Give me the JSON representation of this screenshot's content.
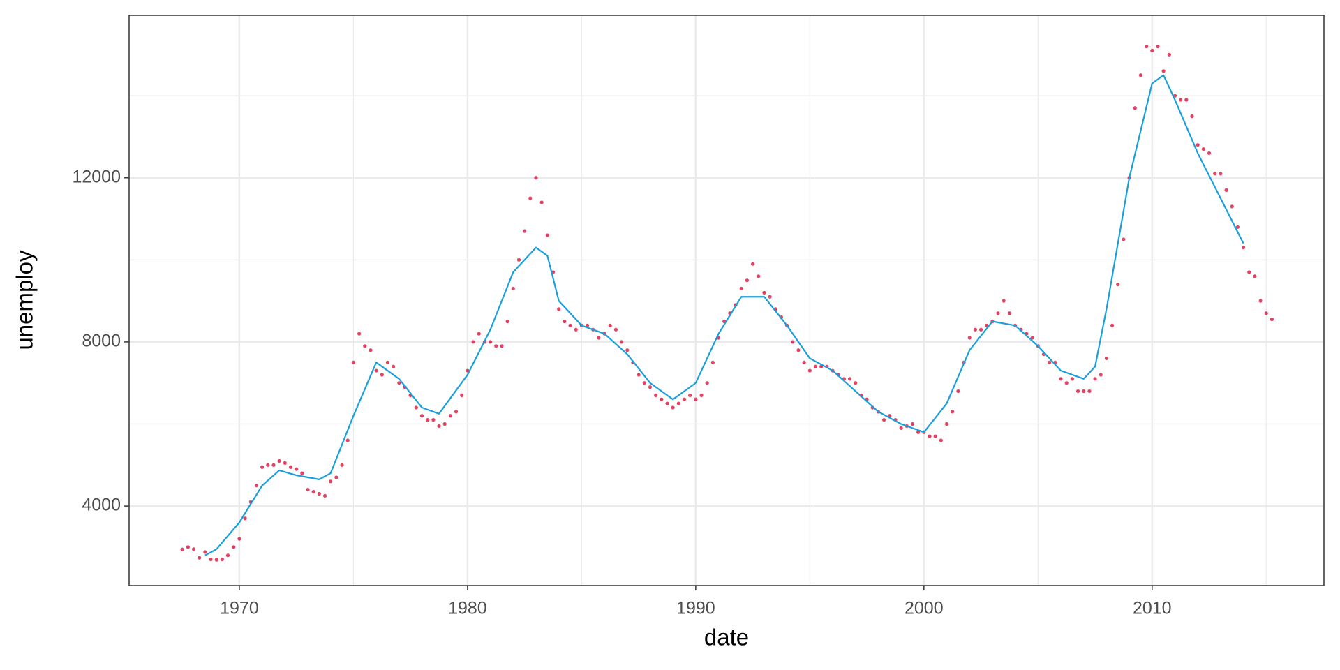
{
  "chart_data": {
    "type": "scatter",
    "x_label": "date",
    "y_label": "unemploy",
    "xlim": [
      1965.17,
      2017.53
    ],
    "ylim": [
      2063,
      15958
    ],
    "xticks": [
      1970,
      1980,
      1990,
      2000,
      2010
    ],
    "yticks": [
      4000,
      8000,
      12000
    ],
    "x_minor_ticks": [
      1975,
      1985,
      1995,
      2005,
      2015
    ],
    "y_minor_ticks": [
      6000,
      10000,
      14000
    ],
    "grid": true,
    "series": [
      {
        "type": "scatter",
        "color": "#dc143c",
        "x": [
          1967.5,
          1967.75,
          1968,
          1968.25,
          1968.5,
          1968.75,
          1969,
          1969.25,
          1969.5,
          1969.75,
          1970,
          1970.25,
          1970.5,
          1970.75,
          1971,
          1971.25,
          1971.5,
          1971.75,
          1972,
          1972.25,
          1972.5,
          1972.75,
          1973,
          1973.25,
          1973.5,
          1973.75,
          1974,
          1974.25,
          1974.5,
          1974.75,
          1975,
          1975.25,
          1975.5,
          1975.75,
          1976,
          1976.25,
          1976.5,
          1976.75,
          1977,
          1977.25,
          1977.5,
          1977.75,
          1978,
          1978.25,
          1978.5,
          1978.75,
          1979,
          1979.25,
          1979.5,
          1979.75,
          1980,
          1980.25,
          1980.5,
          1980.75,
          1981,
          1981.25,
          1981.5,
          1981.75,
          1982,
          1982.25,
          1982.5,
          1982.75,
          1983,
          1983.25,
          1983.5,
          1983.75,
          1984,
          1984.25,
          1984.5,
          1984.75,
          1985,
          1985.25,
          1985.5,
          1985.75,
          1986,
          1986.25,
          1986.5,
          1986.75,
          1987,
          1987.25,
          1987.5,
          1987.75,
          1988,
          1988.25,
          1988.5,
          1988.75,
          1989,
          1989.25,
          1989.5,
          1989.75,
          1990,
          1990.25,
          1990.5,
          1990.75,
          1991,
          1991.25,
          1991.5,
          1991.75,
          1992,
          1992.25,
          1992.5,
          1992.75,
          1993,
          1993.25,
          1993.5,
          1993.75,
          1994,
          1994.25,
          1994.5,
          1994.75,
          1995,
          1995.25,
          1995.5,
          1995.75,
          1996,
          1996.25,
          1996.5,
          1996.75,
          1997,
          1997.25,
          1997.5,
          1997.75,
          1998,
          1998.25,
          1998.5,
          1998.75,
          1999,
          1999.25,
          1999.5,
          1999.75,
          2000,
          2000.25,
          2000.5,
          2000.75,
          2001,
          2001.25,
          2001.5,
          2001.75,
          2002,
          2002.25,
          2002.5,
          2002.75,
          2003,
          2003.25,
          2003.5,
          2003.75,
          2004,
          2004.25,
          2004.5,
          2004.75,
          2005,
          2005.25,
          2005.5,
          2005.75,
          2006,
          2006.25,
          2006.5,
          2006.75,
          2007,
          2007.25,
          2007.5,
          2007.75,
          2008,
          2008.25,
          2008.5,
          2008.75,
          2009,
          2009.25,
          2009.5,
          2009.75,
          2010,
          2010.25,
          2010.5,
          2010.75,
          2011,
          2011.25,
          2011.5,
          2011.75,
          2012,
          2012.25,
          2012.5,
          2012.75,
          2013,
          2013.25,
          2013.5,
          2013.75,
          2014,
          2014.25,
          2014.5,
          2014.75,
          2015,
          2015.25
        ],
        "values": [
          2944,
          3000,
          2950,
          2740,
          2880,
          2700,
          2690,
          2700,
          2800,
          3000,
          3200,
          3700,
          4100,
          4500,
          4950,
          5000,
          5000,
          5100,
          5050,
          4950,
          4900,
          4800,
          4400,
          4350,
          4300,
          4250,
          4600,
          4700,
          5000,
          5600,
          7500,
          8200,
          7900,
          7800,
          7300,
          7200,
          7500,
          7400,
          7000,
          6900,
          6700,
          6400,
          6200,
          6100,
          6100,
          5950,
          6000,
          6200,
          6300,
          6700,
          7300,
          8000,
          8200,
          8000,
          8000,
          7900,
          7900,
          8500,
          9300,
          10000,
          10700,
          11500,
          12000,
          11400,
          10600,
          9700,
          8800,
          8500,
          8400,
          8300,
          8400,
          8400,
          8300,
          8100,
          8200,
          8400,
          8300,
          8000,
          7800,
          7500,
          7200,
          7000,
          6900,
          6700,
          6600,
          6500,
          6400,
          6500,
          6600,
          6700,
          6600,
          6700,
          7000,
          7500,
          8100,
          8500,
          8700,
          8900,
          9300,
          9500,
          9900,
          9600,
          9200,
          9100,
          8800,
          8600,
          8400,
          8000,
          7800,
          7500,
          7300,
          7400,
          7400,
          7400,
          7300,
          7200,
          7100,
          7100,
          7000,
          6700,
          6600,
          6400,
          6300,
          6100,
          6200,
          6100,
          5900,
          5950,
          6000,
          5800,
          5800,
          5700,
          5700,
          5600,
          6000,
          6300,
          6800,
          7500,
          8100,
          8300,
          8300,
          8400,
          8500,
          8700,
          9000,
          8700,
          8400,
          8300,
          8200,
          8100,
          7900,
          7700,
          7500,
          7500,
          7100,
          7000,
          7100,
          6800,
          6800,
          6800,
          7100,
          7200,
          7600,
          8400,
          9400,
          10500,
          12000,
          13700,
          14500,
          15200,
          15100,
          15200,
          14600,
          15000,
          14000,
          13900,
          13900,
          13500,
          12800,
          12700,
          12600,
          12100,
          12100,
          11700,
          11300,
          10800,
          10300,
          9700,
          9600,
          9000,
          8700,
          8550
        ]
      },
      {
        "type": "line",
        "color": "#1a9fdb",
        "x": [
          1968.5,
          1969,
          1970,
          1971,
          1971.75,
          1972.5,
          1973.5,
          1974,
          1975,
          1976,
          1977,
          1978,
          1978.75,
          1980,
          1981,
          1982,
          1983,
          1983.5,
          1984,
          1985,
          1986,
          1987,
          1988,
          1989,
          1990,
          1991,
          1992,
          1993,
          1994,
          1995,
          1996,
          1997,
          1998,
          1999,
          2000,
          2001,
          2002,
          2003,
          2004,
          2005,
          2006,
          2007,
          2007.5,
          2008,
          2009,
          2010,
          2010.5,
          2011,
          2012,
          2013,
          2014
        ],
        "values": [
          2800,
          2950,
          3600,
          4500,
          4870,
          4750,
          4650,
          4800,
          6200,
          7500,
          7100,
          6400,
          6250,
          7200,
          8300,
          9700,
          10300,
          10100,
          9000,
          8400,
          8200,
          7700,
          7000,
          6600,
          7000,
          8200,
          9100,
          9100,
          8400,
          7600,
          7300,
          6800,
          6300,
          6000,
          5800,
          6500,
          7800,
          8500,
          8400,
          7900,
          7300,
          7100,
          7400,
          8800,
          12000,
          14300,
          14500,
          13900,
          12600,
          11500,
          10400
        ]
      }
    ]
  }
}
